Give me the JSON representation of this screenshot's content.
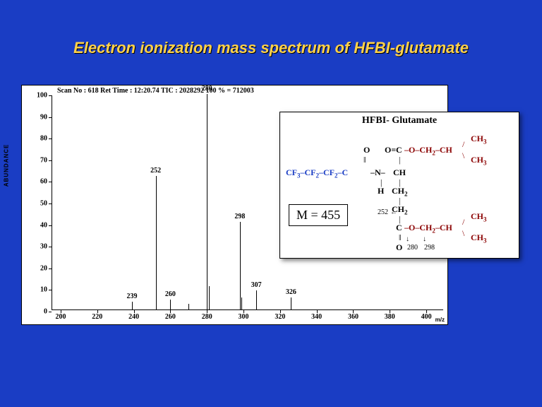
{
  "title": "Electron ionization mass spectrum of HFBI-glutamate",
  "chart": {
    "header": "Scan No : 618   Ret Time : 12:20.74   TIC : 2028292    100 % = 712003",
    "ylabel": "ABUNDANCE",
    "xlabel": "m/z",
    "ylim": [
      0,
      100
    ],
    "xlim": [
      195,
      410
    ],
    "yticks": [
      0,
      10,
      20,
      30,
      40,
      50,
      60,
      70,
      80,
      90,
      100
    ],
    "xticks": [
      200,
      220,
      240,
      260,
      280,
      300,
      320,
      340,
      360,
      380,
      400
    ],
    "background_color": "#ffffff",
    "line_color": "#000000",
    "peaks": [
      {
        "mz": 239,
        "abundance": 4,
        "label": "239"
      },
      {
        "mz": 252,
        "abundance": 62,
        "label": "252"
      },
      {
        "mz": 260,
        "abundance": 5,
        "label": "260"
      },
      {
        "mz": 280,
        "abundance": 100,
        "label": "280"
      },
      {
        "mz": 281,
        "abundance": 11,
        "label": ""
      },
      {
        "mz": 298,
        "abundance": 41,
        "label": "298"
      },
      {
        "mz": 299,
        "abundance": 6,
        "label": ""
      },
      {
        "mz": 307,
        "abundance": 9,
        "label": "307"
      },
      {
        "mz": 326,
        "abundance": 6,
        "label": "326"
      },
      {
        "mz": 270,
        "abundance": 3,
        "label": ""
      }
    ]
  },
  "structure": {
    "title": "HFBI- Glutamate",
    "mass_label": "M = 455",
    "colors": {
      "fluoro": "#1a3dc4",
      "ester": "#8b0000",
      "backbone": "#000000"
    },
    "fragments": [
      "252",
      "280",
      "298"
    ]
  },
  "slide": {
    "background_color": "#1a3dc4",
    "title_color": "#ffd24a"
  }
}
